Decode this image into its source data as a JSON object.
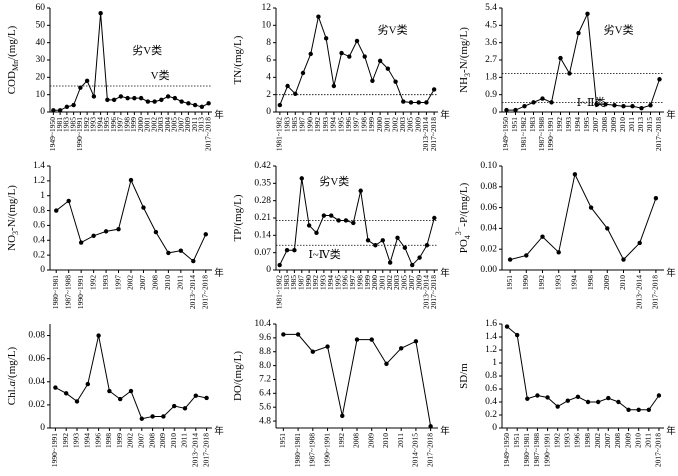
{
  "chart_data": [
    {
      "type": "line",
      "ylabel": [
        {
          "text": "COD"
        },
        {
          "text": "Mn",
          "sub": true
        },
        {
          "text": "/(mg/L)"
        }
      ],
      "xlabel": "年",
      "categories": [
        "1949~1950",
        "1981",
        "1983",
        "1985",
        "1990~1991",
        "1992",
        "1993",
        "1994",
        "1995",
        "1996",
        "1997",
        "1998",
        "1999",
        "2000",
        "2001",
        "2002",
        "2003",
        "2004",
        "2005",
        "2007",
        "2009",
        "2011",
        "2013",
        "2017~2018"
      ],
      "values": [
        1,
        1,
        3,
        4,
        14,
        18,
        9,
        57,
        7,
        7,
        9,
        8,
        8,
        8,
        6,
        6,
        7,
        9,
        8,
        6,
        5,
        4,
        3,
        5
      ],
      "ylim": [
        0,
        60
      ],
      "yticks": [
        0,
        10,
        20,
        30,
        40,
        50,
        60
      ],
      "thresholds": [
        15
      ],
      "annotations": [
        "劣V类",
        "V类"
      ],
      "color": "#000000"
    },
    {
      "type": "line",
      "ylabel": [
        {
          "text": "TN/(mg/L)"
        }
      ],
      "xlabel": "年",
      "categories": [
        "1981~1982",
        "1983",
        "1985",
        "1987",
        "1990",
        "1992",
        "1993",
        "1994",
        "1995",
        "1996",
        "1997",
        "1998",
        "1999",
        "2000",
        "2001",
        "2002",
        "2003",
        "2005",
        "2009",
        "2013~2014",
        "2017~2018"
      ],
      "values": [
        0.8,
        3,
        2.1,
        4.5,
        6.7,
        11,
        8.5,
        3,
        6.8,
        6.4,
        8.2,
        6.4,
        3.6,
        5.9,
        5,
        3.5,
        1.2,
        1.1,
        1.1,
        1.1,
        2.6
      ],
      "ylim": [
        0,
        12
      ],
      "yticks": [
        0,
        2,
        4,
        6,
        8,
        10,
        12
      ],
      "thresholds": [
        2
      ],
      "annotations": [
        "劣V类"
      ],
      "color": "#000000"
    },
    {
      "type": "line",
      "ylabel": [
        {
          "text": "NH"
        },
        {
          "text": "3",
          "sub": true
        },
        {
          "text": "-N/(mg/L)"
        }
      ],
      "xlabel": "年",
      "categories": [
        "1949~1950",
        "1951",
        "1981~1982",
        "1983",
        "1987~1988",
        "1990~1991",
        "1992",
        "1993",
        "1994",
        "1995",
        "2007",
        "2008",
        "2009",
        "2010",
        "2011",
        "2013",
        "2015",
        "2017~2018"
      ],
      "values": [
        0.1,
        0.1,
        0.3,
        0.5,
        0.7,
        0.5,
        2.8,
        2.0,
        4.1,
        5.1,
        0.4,
        0.4,
        0.35,
        0.3,
        0.3,
        0.2,
        0.35,
        1.7
      ],
      "ylim": [
        0,
        5.4
      ],
      "yticks": [
        0,
        0.9,
        1.8,
        2.7,
        3.6,
        4.5,
        5.4
      ],
      "thresholds": [
        2,
        0.5
      ],
      "annotations": [
        "劣V类",
        "Ⅰ~Ⅱ类"
      ],
      "color": "#000000"
    },
    {
      "type": "line",
      "ylabel": [
        {
          "text": "NO"
        },
        {
          "text": "3",
          "sub": true
        },
        {
          "text": "-N/(mg/L)"
        }
      ],
      "xlabel": "年",
      "categories": [
        "1980~1981",
        "1987~1988",
        "1990~1991",
        "1992",
        "1993",
        "1997",
        "2002",
        "2007",
        "2008",
        "2010",
        "2011",
        "2013~2014",
        "2017~2018"
      ],
      "values": [
        0.8,
        0.93,
        0.37,
        0.46,
        0.52,
        0.55,
        1.21,
        0.84,
        0.51,
        0.23,
        0.26,
        0.12,
        0.48
      ],
      "ylim": [
        0,
        1.4
      ],
      "yticks": [
        0,
        0.2,
        0.4,
        0.6,
        0.8,
        1,
        1.2,
        1.4
      ],
      "thresholds": [],
      "annotations": [],
      "color": "#000000"
    },
    {
      "type": "line",
      "ylabel": [
        {
          "text": "TP/(mg/L)"
        }
      ],
      "xlabel": "年",
      "categories": [
        "1981~1982",
        "1983",
        "1985",
        "1987",
        "1990",
        "1992",
        "1993",
        "1994",
        "1995",
        "1996",
        "1997",
        "1998",
        "1999",
        "2000",
        "2001",
        "2002",
        "2003",
        "2005",
        "2007",
        "2009",
        "2013~2014",
        "2017~2018"
      ],
      "values": [
        0.02,
        0.08,
        0.08,
        0.37,
        0.18,
        0.15,
        0.22,
        0.22,
        0.2,
        0.2,
        0.19,
        0.32,
        0.12,
        0.1,
        0.12,
        0.03,
        0.13,
        0.09,
        0.02,
        0.05,
        0.1,
        0.21
      ],
      "ylim": [
        0,
        0.42
      ],
      "yticks": [
        0,
        0.07,
        0.14,
        0.21,
        0.28,
        0.35,
        0.42
      ],
      "thresholds": [
        0.2,
        0.1
      ],
      "annotations": [
        "劣V类",
        "Ⅰ~Ⅳ类"
      ],
      "color": "#000000"
    },
    {
      "type": "line",
      "ylabel": [
        {
          "text": "PO"
        },
        {
          "text": "4",
          "sub": true
        },
        {
          "text": "3−",
          "sup": true
        },
        {
          "text": "-P/(mg/L)"
        }
      ],
      "xlabel": "年",
      "categories": [
        "1951",
        "1990",
        "1992",
        "1993",
        "1994",
        "1998",
        "2009",
        "2010",
        "2013~2014",
        "2017~2018"
      ],
      "values": [
        0.01,
        0.014,
        0.032,
        0.017,
        0.092,
        0.06,
        0.04,
        0.01,
        0.026,
        0.069
      ],
      "ylim": [
        0,
        0.1
      ],
      "yticks": [
        {
          "value": 0,
          "label": "0.00"
        },
        {
          "value": 0.02,
          "label": "0.02"
        },
        {
          "value": 0.04,
          "label": "0.04"
        },
        {
          "value": 0.06,
          "label": "0.06"
        },
        {
          "value": 0.08,
          "label": "0.08"
        },
        {
          "value": 0.1,
          "label": "0.10"
        }
      ],
      "thresholds": [],
      "annotations": [],
      "color": "#000000"
    },
    {
      "type": "line",
      "ylabel": [
        {
          "text": "Chl."
        },
        {
          "text": "a",
          "italic": true
        },
        {
          "text": "/(mg/L)"
        }
      ],
      "xlabel": "年",
      "categories": [
        "1990~1991",
        "1992",
        "1993",
        "1994",
        "1996",
        "1998",
        "1999",
        "2002",
        "2007",
        "2008",
        "2009",
        "2010",
        "2011",
        "2013~2014",
        "2017~2018"
      ],
      "values": [
        0.035,
        0.03,
        0.023,
        0.038,
        0.08,
        0.032,
        0.025,
        0.032,
        0.008,
        0.01,
        0.01,
        0.019,
        0.017,
        0.028,
        0.026
      ],
      "ylim": [
        0,
        0.09
      ],
      "yticks": [
        0,
        0.02,
        0.04,
        0.06,
        0.08
      ],
      "thresholds": [],
      "annotations": [],
      "color": "#000000"
    },
    {
      "type": "line",
      "ylabel": [
        {
          "text": "DO/(mg/L)"
        }
      ],
      "xlabel": "年",
      "categories": [
        "1951",
        "1980~1981",
        "1987~1988",
        "1990~1991",
        "1992",
        "2008",
        "2009",
        "2010",
        "2011",
        "2014~2015",
        "2017~2018"
      ],
      "values": [
        9.8,
        9.8,
        8.8,
        9.1,
        5.1,
        9.5,
        9.5,
        8.1,
        9.0,
        9.4,
        4.5
      ],
      "ylim": [
        4.4,
        10.4
      ],
      "yticks": [
        4.8,
        5.6,
        6.4,
        7.2,
        {
          "value": 8,
          "label": "8.0"
        },
        8.8,
        9.6,
        10.4
      ],
      "thresholds": [],
      "annotations": [],
      "color": "#000000"
    },
    {
      "type": "line",
      "ylabel": [
        {
          "text": "SD/m"
        }
      ],
      "xlabel": "年",
      "categories": [
        "1949~1950",
        "1951",
        "1980~1981",
        "1987~1988",
        "1990~1991",
        "1992",
        "1993",
        "1996",
        "1998",
        "2002",
        "2007",
        "2008",
        "2009",
        "2010",
        "2011",
        "2017~2018"
      ],
      "values": [
        1.56,
        1.43,
        0.45,
        0.5,
        0.47,
        0.33,
        0.42,
        0.48,
        0.4,
        0.4,
        0.46,
        0.4,
        0.28,
        0.28,
        0.28,
        0.5
      ],
      "ylim": [
        0,
        1.6
      ],
      "yticks": [
        0,
        0.2,
        0.4,
        0.6,
        0.8,
        1,
        1.2,
        1.4,
        1.6
      ],
      "thresholds": [],
      "annotations": [],
      "color": "#000000"
    }
  ]
}
